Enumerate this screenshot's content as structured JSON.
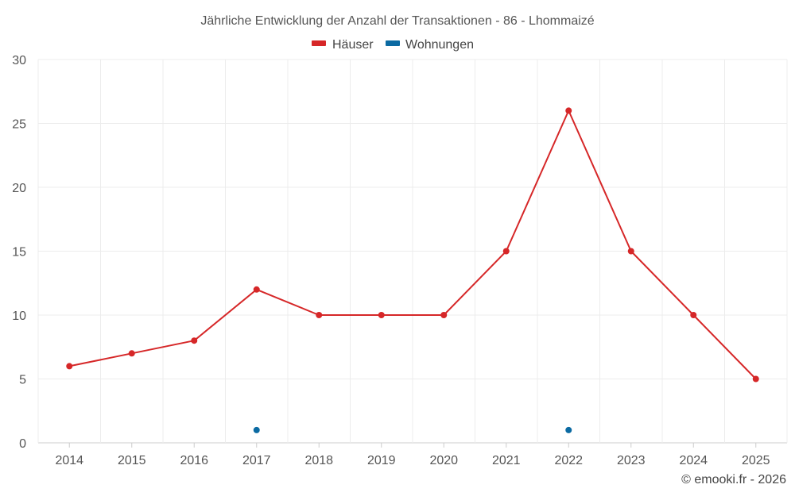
{
  "chart_data": {
    "type": "line",
    "title": "Jährliche Entwicklung der Anzahl der Transaktionen - 86 - Lhommaizé",
    "categories": [
      "2014",
      "2015",
      "2016",
      "2017",
      "2018",
      "2019",
      "2020",
      "2021",
      "2022",
      "2023",
      "2024",
      "2025"
    ],
    "series": [
      {
        "name": "Häuser",
        "color": "#d62728",
        "values": [
          6,
          7,
          8,
          12,
          10,
          10,
          10,
          15,
          26,
          15,
          10,
          5
        ]
      },
      {
        "name": "Wohnungen",
        "color": "#0b6aa2",
        "values": [
          null,
          null,
          null,
          1,
          null,
          null,
          null,
          null,
          1,
          null,
          null,
          null
        ]
      }
    ],
    "ylim": [
      0,
      30
    ],
    "yticks": [
      0,
      5,
      10,
      15,
      20,
      25,
      30
    ],
    "xlabel": "",
    "ylabel": "",
    "legend_position": "top-center",
    "grid": true
  },
  "credit": "© emooki.fr - 2026"
}
